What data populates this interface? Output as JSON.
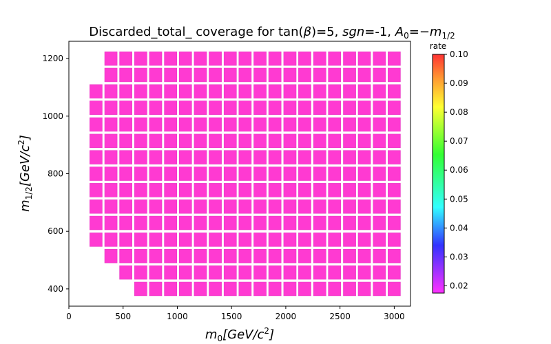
{
  "chart_data": {
    "type": "heatmap",
    "title_main": "Discarded_total_ coverage for tan(",
    "title_beta": "β",
    "title_mid": ")=5, ",
    "title_sgn": "sgn",
    "title_eq": "=-1, ",
    "title_a": "A",
    "title_a_sub": "0",
    "title_eq2": "=−",
    "title_m": "m",
    "title_m_sub": "1/2",
    "xlabel_m": "m",
    "xlabel_sub": "0",
    "xlabel_unit": "[GeV/c",
    "xlabel_pow": "2",
    "xlabel_close": "]",
    "ylabel_m": "m",
    "ylabel_sub": "1/2",
    "ylabel_unit": "[GeV/c",
    "ylabel_pow": "2",
    "ylabel_close": "]",
    "xlim": [
      0,
      3150
    ],
    "ylim": [
      340,
      1260
    ],
    "xticks": [
      0,
      500,
      1000,
      1500,
      2000,
      2500,
      3000
    ],
    "xtick_labels": [
      "0",
      "500",
      "1000",
      "1500",
      "2000",
      "2500",
      "3000"
    ],
    "yticks": [
      400,
      600,
      800,
      1000,
      1200
    ],
    "ytick_labels": [
      "400",
      "600",
      "800",
      "1000",
      "1200"
    ],
    "cell_size": [
      125,
      50
    ],
    "m0_values": [
      250,
      388,
      525,
      663,
      800,
      938,
      1075,
      1213,
      1350,
      1488,
      1625,
      1763,
      1900,
      2038,
      2175,
      2313,
      2450,
      2588,
      2725,
      2863,
      3000
    ],
    "rows": [
      {
        "m12": 400,
        "m0_min": 663,
        "m0_max": 3000,
        "rate": 0.018
      },
      {
        "m12": 457,
        "m0_min": 525,
        "m0_max": 3000,
        "rate": 0.018
      },
      {
        "m12": 514,
        "m0_min": 388,
        "m0_max": 3000,
        "rate": 0.018
      },
      {
        "m12": 571,
        "m0_min": 250,
        "m0_max": 3000,
        "rate": 0.018
      },
      {
        "m12": 629,
        "m0_min": 250,
        "m0_max": 3000,
        "rate": 0.018
      },
      {
        "m12": 686,
        "m0_min": 250,
        "m0_max": 3000,
        "rate": 0.018
      },
      {
        "m12": 743,
        "m0_min": 250,
        "m0_max": 3000,
        "rate": 0.018
      },
      {
        "m12": 800,
        "m0_min": 250,
        "m0_max": 3000,
        "rate": 0.018
      },
      {
        "m12": 857,
        "m0_min": 250,
        "m0_max": 3000,
        "rate": 0.018
      },
      {
        "m12": 914,
        "m0_min": 250,
        "m0_max": 3000,
        "rate": 0.018
      },
      {
        "m12": 971,
        "m0_min": 250,
        "m0_max": 3000,
        "rate": 0.018
      },
      {
        "m12": 1029,
        "m0_min": 250,
        "m0_max": 3000,
        "rate": 0.018
      },
      {
        "m12": 1086,
        "m0_min": 250,
        "m0_max": 3000,
        "rate": 0.018
      },
      {
        "m12": 1143,
        "m0_min": 388,
        "m0_max": 3000,
        "rate": 0.018
      },
      {
        "m12": 1200,
        "m0_min": 388,
        "m0_max": 3000,
        "rate": 0.018
      }
    ],
    "colorbar": {
      "label": "rate",
      "min": 0.0175,
      "max": 0.1,
      "ticks": [
        0.02,
        0.03,
        0.04,
        0.05,
        0.06,
        0.07,
        0.08,
        0.09,
        0.1
      ],
      "tick_labels": [
        "0.02",
        "0.03",
        "0.04",
        "0.05",
        "0.06",
        "0.07",
        "0.08",
        "0.09",
        "0.10"
      ],
      "colormap": "gist_rainbow_r"
    },
    "cell_color": "#ff3ad2",
    "cell_edge_color": "#e83ac4"
  }
}
